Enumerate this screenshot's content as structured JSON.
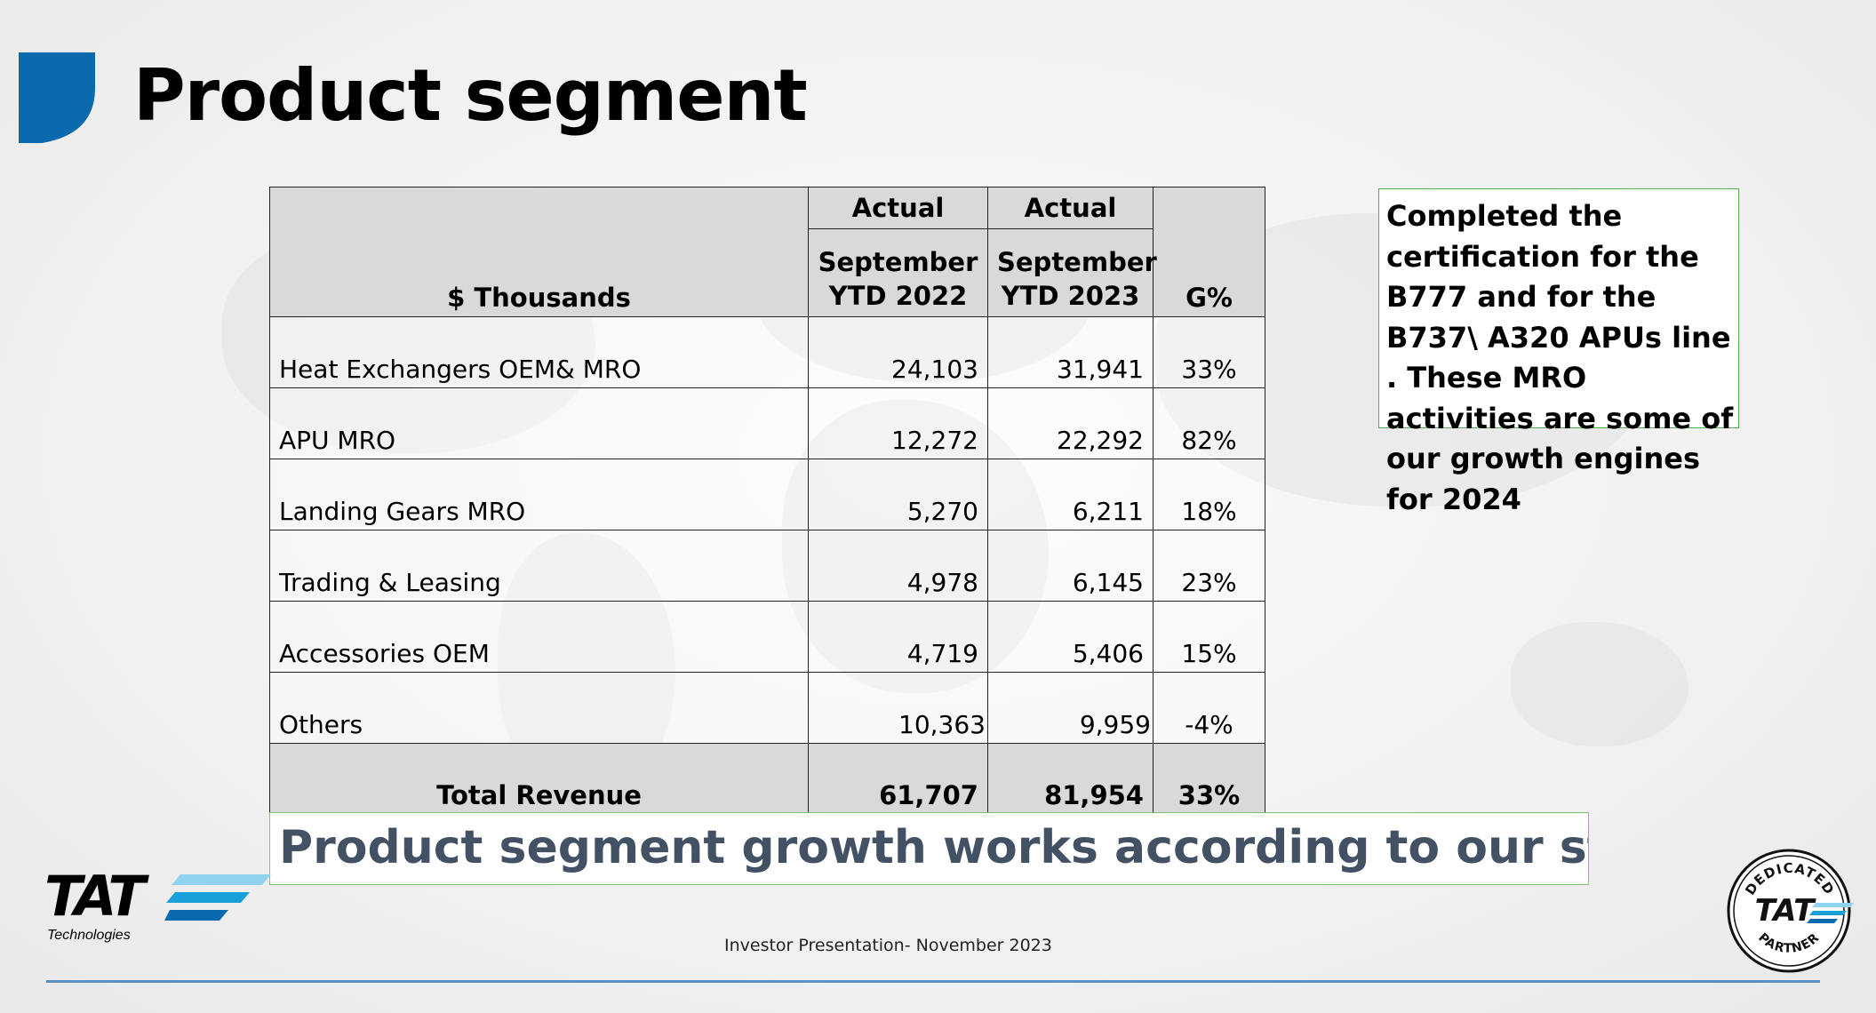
{
  "slide": {
    "title": "Product segment",
    "note": "Completed the certification for the B777 and for the B737\\ A320 APUs line . These MRO activities are some of our growth engines for 2024",
    "banner": "Product segment growth works according to our strategy",
    "footer": "Investor Presentation- November 2023",
    "accent_color": "#0b6aad"
  },
  "table": {
    "header": {
      "unit_label": "$ Thousands",
      "col1_top": "Actual",
      "col1_bottom_line1": "September",
      "col1_bottom_line2": "YTD 2022",
      "col2_top": "Actual",
      "col2_bottom_line1": "September",
      "col2_bottom_line2": "YTD 2023",
      "growth_label": "G%"
    },
    "rows": [
      {
        "label": "Heat Exchangers OEM& MRO",
        "ytd2022": "24,103",
        "ytd2023": "31,941",
        "growth": "33%"
      },
      {
        "label": "APU MRO",
        "ytd2022": "12,272",
        "ytd2023": "22,292",
        "growth": "82%"
      },
      {
        "label": "Landing Gears MRO",
        "ytd2022": "5,270",
        "ytd2023": "6,211",
        "growth": "18%"
      },
      {
        "label": "Trading & Leasing",
        "ytd2022": "4,978",
        "ytd2023": "6,145",
        "growth": "23%"
      },
      {
        "label": "Accessories OEM",
        "ytd2022": "4,719",
        "ytd2023": "5,406",
        "growth": "15%"
      },
      {
        "label": "Others",
        "ytd2022": "10,363",
        "ytd2023": "9,959",
        "growth": "-4%"
      }
    ],
    "total": {
      "label": "Total Revenue",
      "ytd2022": "61,707",
      "ytd2023": "81,954",
      "growth": "33%"
    }
  },
  "logo": {
    "name": "TAT",
    "subtitle": "Technologies"
  },
  "badge": {
    "top_text": "DEDICATED",
    "center_text": "TAT",
    "bottom_text": "PARTNER"
  }
}
